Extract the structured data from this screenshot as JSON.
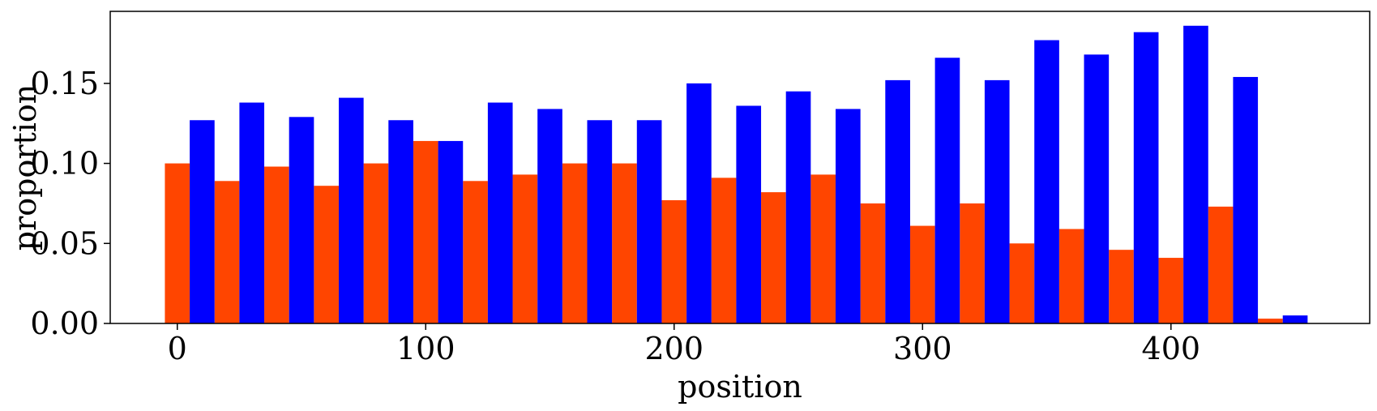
{
  "chart_data": {
    "type": "bar",
    "xlabel": "position",
    "ylabel": "proportion",
    "xlim": [
      -27,
      480
    ],
    "ylim": [
      0,
      0.195
    ],
    "xticks": [
      0,
      100,
      200,
      300,
      400
    ],
    "xtick_labels": [
      "0",
      "100",
      "200",
      "300",
      "400"
    ],
    "yticks": [
      0.0,
      0.05,
      0.1,
      0.15
    ],
    "ytick_labels": [
      "0.00",
      "0.05",
      "0.10",
      "0.15"
    ],
    "bin_width": 10,
    "grid": false,
    "legend": false,
    "series": [
      {
        "color": "#FF4500",
        "x": [
          0,
          20,
          40,
          60,
          80,
          100,
          120,
          140,
          160,
          180,
          200,
          220,
          240,
          260,
          280,
          300,
          320,
          340,
          360,
          380,
          400,
          420,
          440
        ],
        "values": [
          0.1,
          0.089,
          0.098,
          0.086,
          0.1,
          0.114,
          0.089,
          0.093,
          0.1,
          0.1,
          0.077,
          0.091,
          0.082,
          0.093,
          0.075,
          0.061,
          0.075,
          0.05,
          0.059,
          0.046,
          0.041,
          0.073,
          0.003
        ]
      },
      {
        "color": "#0000FF",
        "x": [
          10,
          30,
          50,
          70,
          90,
          110,
          130,
          150,
          170,
          190,
          210,
          230,
          250,
          270,
          290,
          310,
          330,
          350,
          370,
          390,
          410,
          430,
          450
        ],
        "values": [
          0.127,
          0.138,
          0.129,
          0.141,
          0.127,
          0.114,
          0.138,
          0.134,
          0.127,
          0.127,
          0.15,
          0.136,
          0.145,
          0.134,
          0.152,
          0.166,
          0.152,
          0.177,
          0.168,
          0.182,
          0.186,
          0.154,
          0.005
        ]
      }
    ]
  }
}
